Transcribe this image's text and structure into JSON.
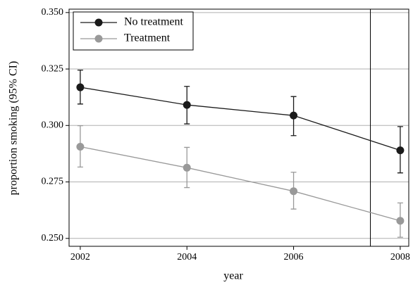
{
  "chart_data": {
    "type": "line",
    "xlabel": "year",
    "ylabel": "proportion smoking (95% CI)",
    "x": [
      2002,
      2004,
      2006,
      2008
    ],
    "series": [
      {
        "name": "No treatment",
        "color": "#1a1a1a",
        "values": [
          0.3169,
          0.3091,
          0.3044,
          0.289
        ],
        "ci_low": [
          0.3095,
          0.3007,
          0.2955,
          0.279
        ],
        "ci_high": [
          0.3245,
          0.3173,
          0.3128,
          0.2995
        ]
      },
      {
        "name": "Treatment",
        "color": "#999999",
        "values": [
          0.2906,
          0.2813,
          0.2709,
          0.2578
        ],
        "ci_low": [
          0.2816,
          0.2725,
          0.263,
          0.2505
        ],
        "ci_high": [
          0.2999,
          0.2903,
          0.2793,
          0.2657
        ]
      }
    ],
    "xlim": [
      2001.79,
      2008.16
    ],
    "ylim": [
      0.2465,
      0.3515
    ],
    "xticks": [
      2002,
      2004,
      2006,
      2008
    ],
    "yticks": [
      {
        "value": 0.25,
        "label": "0.250"
      },
      {
        "value": 0.275,
        "label": "0.275"
      },
      {
        "value": 0.3,
        "label": "0.300"
      },
      {
        "value": 0.325,
        "label": "0.325"
      },
      {
        "value": 0.35,
        "label": "0.350"
      }
    ],
    "vline": 2007.44,
    "grid": true,
    "legend": "upper left"
  }
}
